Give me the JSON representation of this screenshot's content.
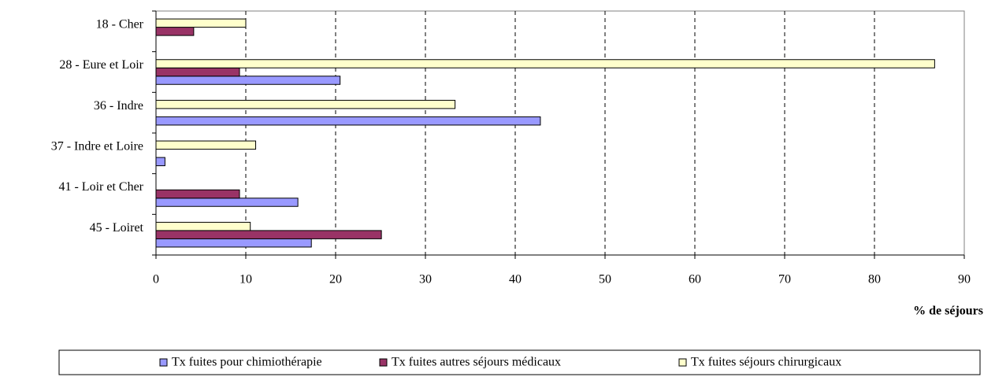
{
  "chart_data": {
    "type": "bar",
    "orientation": "horizontal",
    "x_label": "% de séjours",
    "categories": [
      "18 - Cher",
      "28 - Eure et Loir",
      "36 - Indre",
      "37 - Indre et Loire",
      "41 - Loir et Cher",
      "45 - Loiret"
    ],
    "series": [
      {
        "name": "Tx fuites pour chimiothérapie",
        "color": "#9999ff",
        "values": [
          null,
          20.5,
          42.8,
          1.0,
          15.8,
          17.3
        ]
      },
      {
        "name": "Tx fuites autres séjours médicaux",
        "color": "#993366",
        "values": [
          4.2,
          9.3,
          null,
          null,
          9.3,
          25.1
        ]
      },
      {
        "name": "Tx fuites séjours chirurgicaux",
        "color": "#ffffcc",
        "values": [
          10.0,
          86.7,
          33.3,
          11.1,
          null,
          10.5
        ]
      }
    ],
    "xlim": [
      0,
      90
    ],
    "xticks": [
      0,
      10,
      20,
      30,
      40,
      50,
      60,
      70,
      80,
      90
    ],
    "grid": true,
    "legend": "bottom"
  }
}
